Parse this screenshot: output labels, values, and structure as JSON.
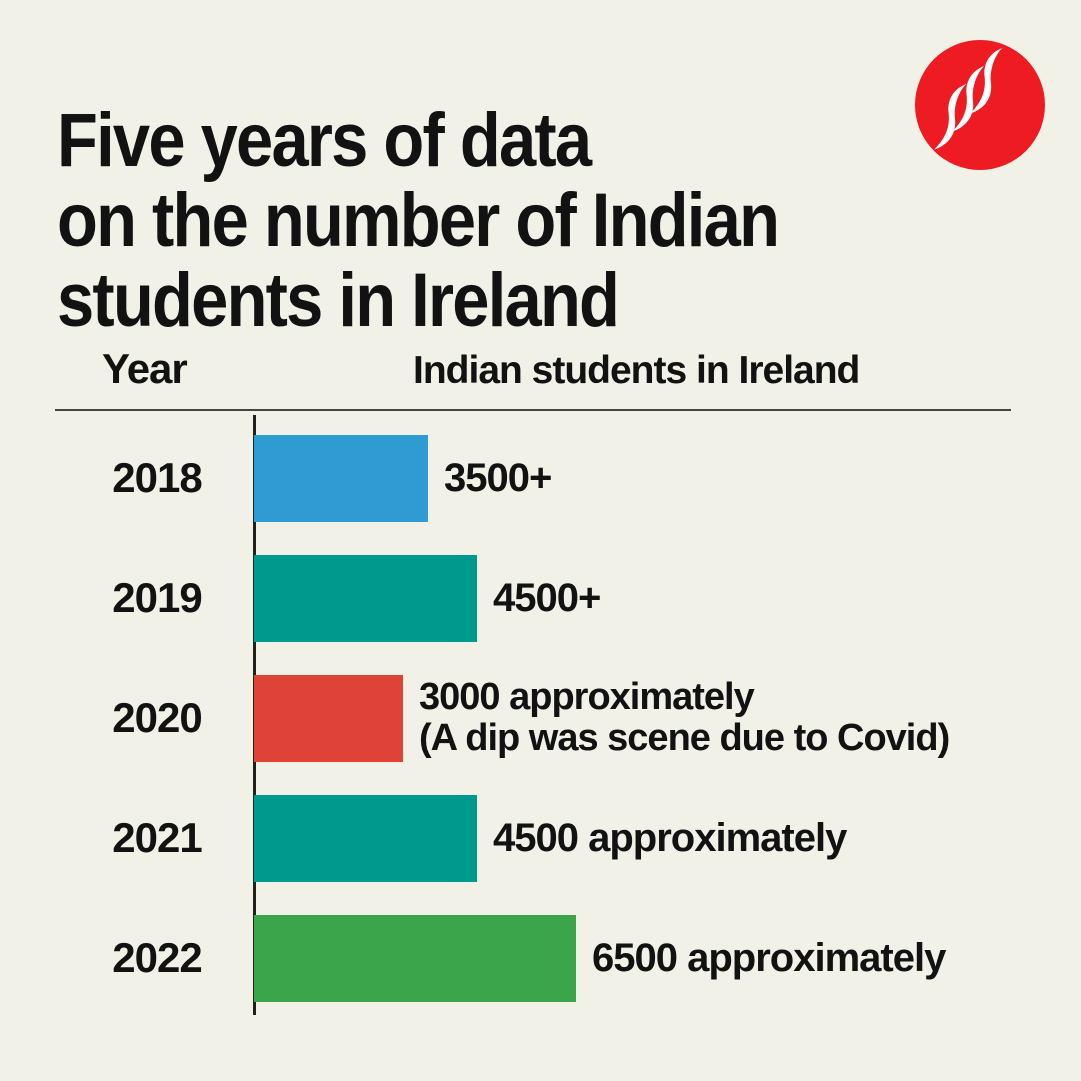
{
  "page": {
    "background": "#f2f1e8",
    "text_color": "#121212",
    "title_lines": [
      "Five years of data",
      "on the number of Indian",
      "students in Ireland"
    ]
  },
  "logo": {
    "name": "indian-express-monogram",
    "circle_color": "#ee1b23",
    "glyph_color": "#ffffff"
  },
  "chart_data": {
    "type": "bar",
    "orientation": "horizontal",
    "title": "Five years of data on the number of Indian students in Ireland",
    "columns": [
      "Year",
      "Indian students in Ireland"
    ],
    "categories": [
      "2018",
      "2019",
      "2020",
      "2021",
      "2022"
    ],
    "values": [
      3500,
      4500,
      3000,
      4500,
      6500
    ],
    "value_labels": [
      [
        "3500+"
      ],
      [
        "4500+"
      ],
      [
        "3000 approximately",
        "(A dip was scene due to Covid)"
      ],
      [
        "4500 approximately"
      ],
      [
        "6500 approximately"
      ]
    ],
    "bar_colors": [
      "#2e9bd2",
      "#00998e",
      "#df4338",
      "#00998e",
      "#3aa54b"
    ],
    "xlim": [
      0,
      7000
    ],
    "grid": false,
    "legend": false,
    "axis_color": "#20201c"
  }
}
